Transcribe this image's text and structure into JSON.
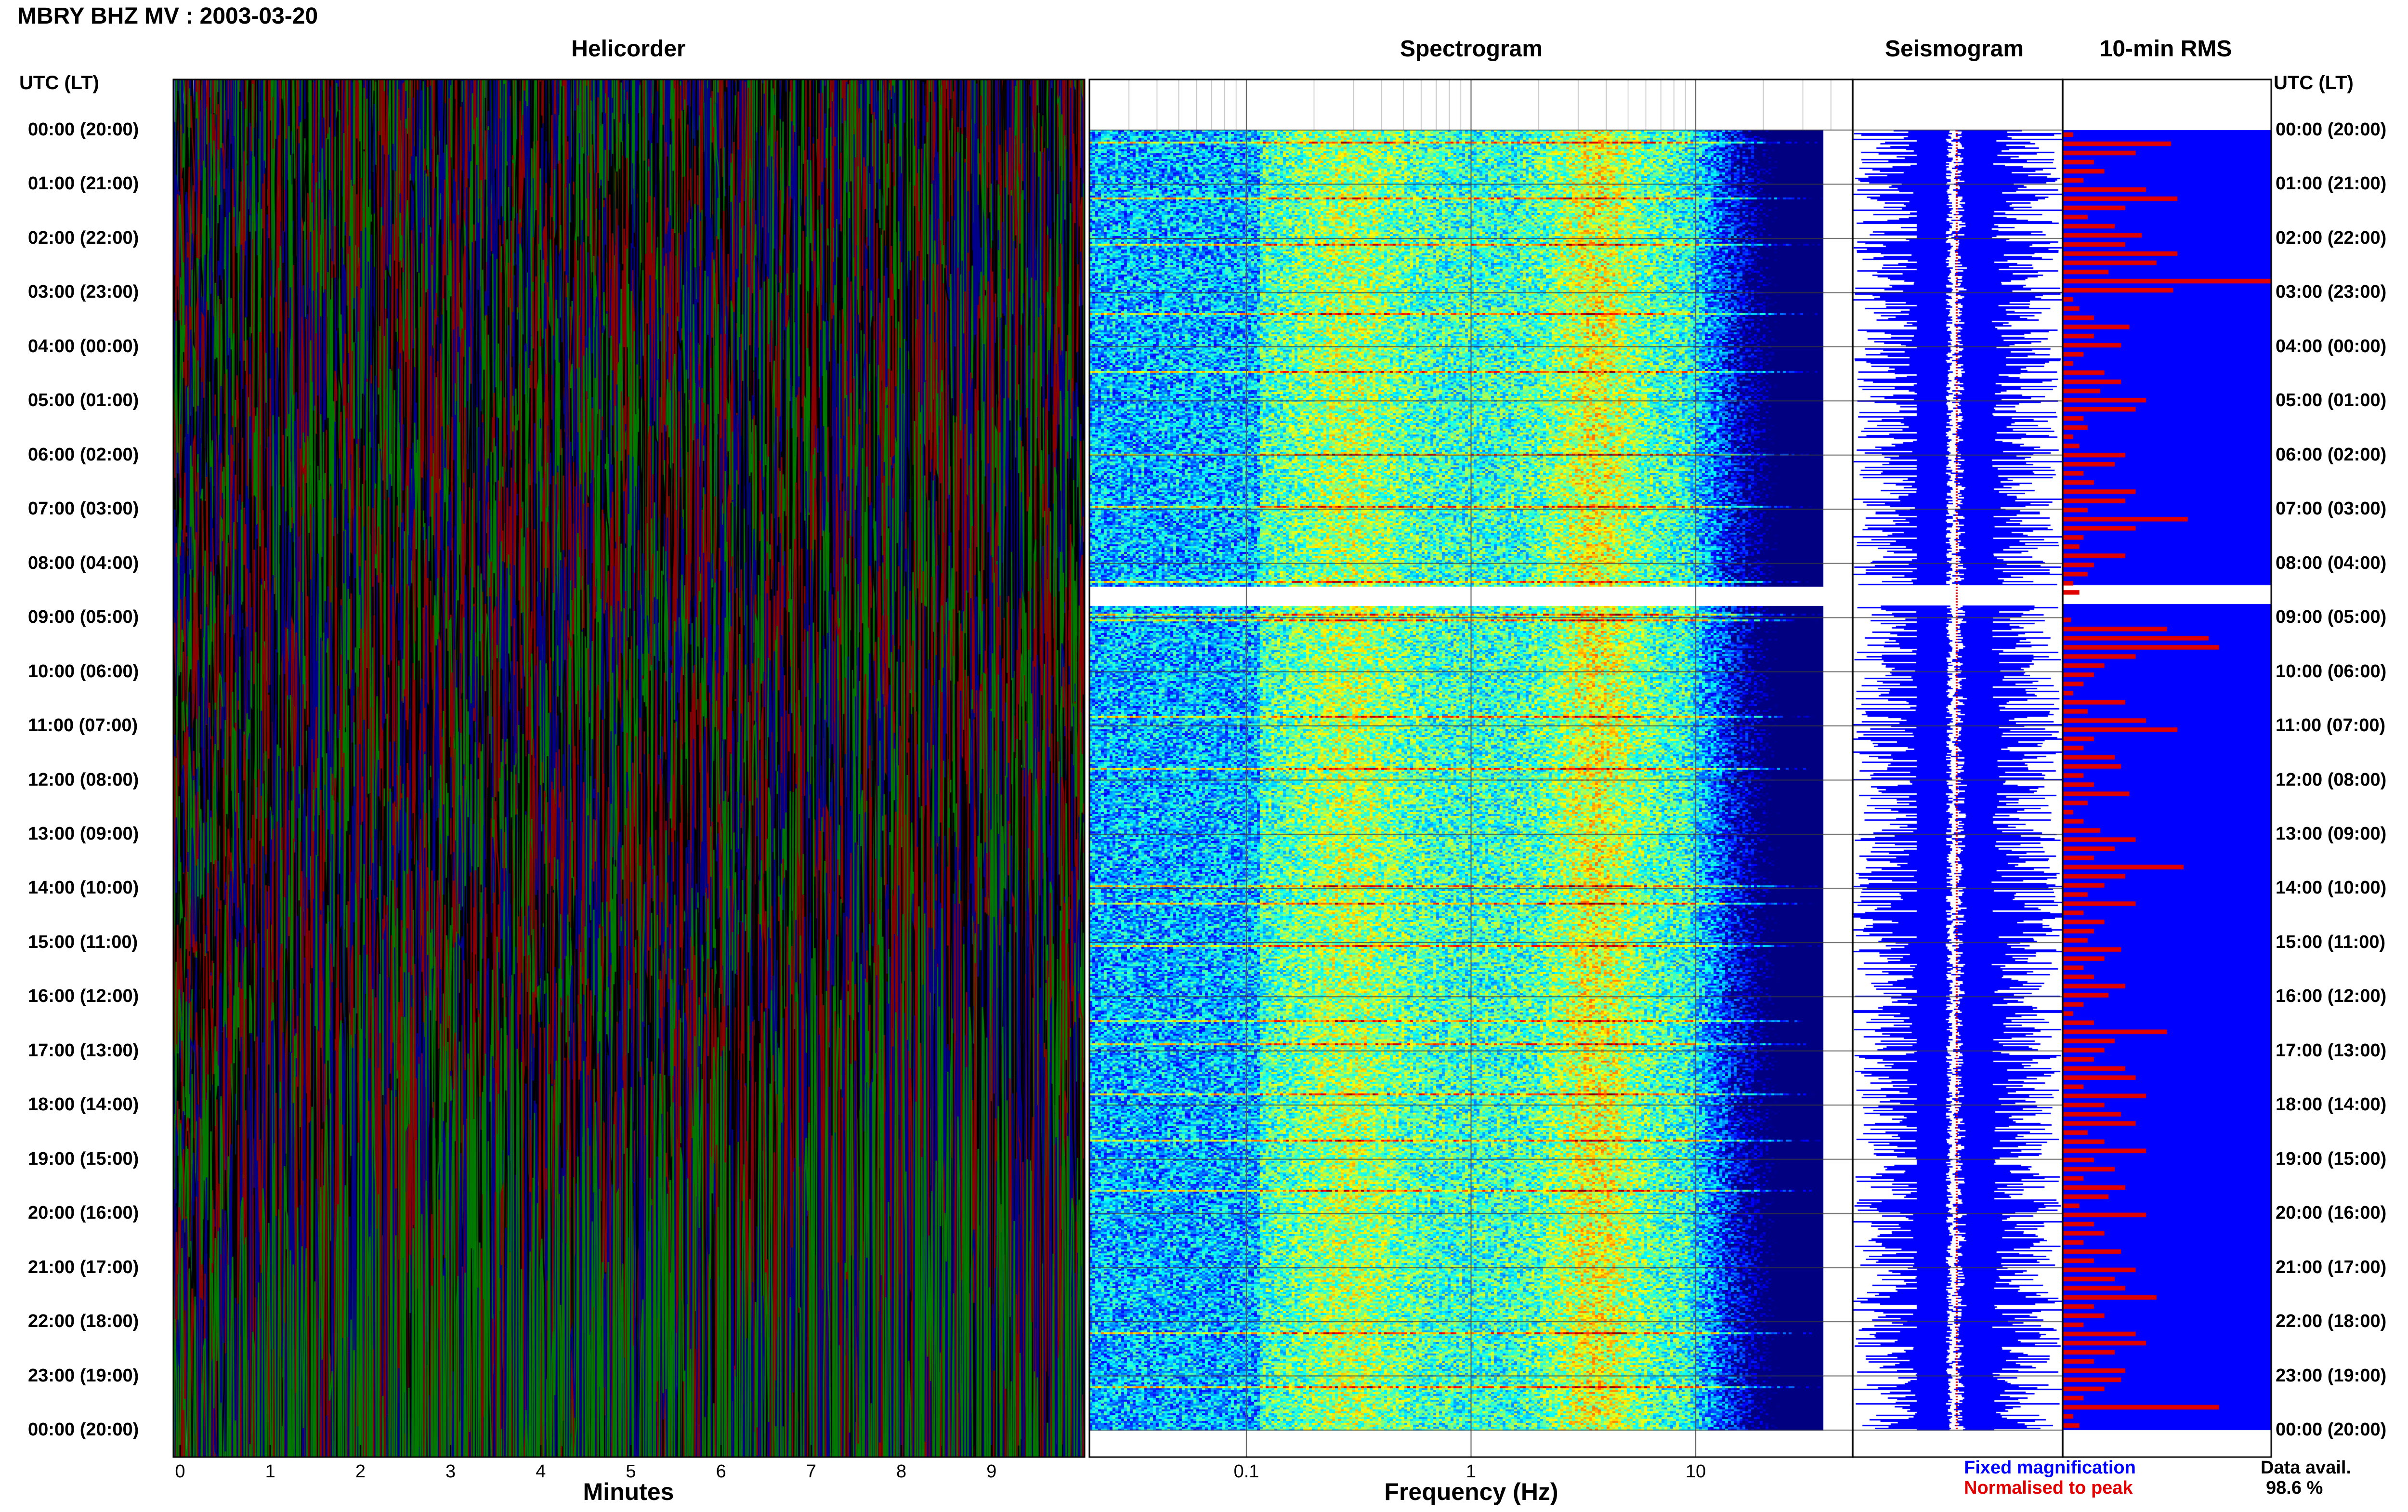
{
  "page": {
    "title": "MBRY BHZ MV : 2003-03-20",
    "panels": {
      "helicorder": "Helicorder",
      "spectrogram": "Spectrogram",
      "seismogram": "Seismogram",
      "rms": "10-min RMS"
    },
    "utc_label_left": "UTC (LT)",
    "utc_label_right": "UTC (LT)",
    "xlabel_helicorder": "Minutes",
    "xlabel_spectrogram": "Frequency (Hz)",
    "legend_fixed": "Fixed magnification",
    "legend_normalised": "Normalised to peak",
    "data_avail_label": "Data avail.",
    "data_avail_value": "98.6 %",
    "colors": {
      "helicorder_traces": [
        "#000000",
        "#8b0000",
        "#00008b",
        "#007a00"
      ],
      "fixed_magnification": "#0000ff",
      "normalised_to_peak": "#e00000",
      "rms_background": "#0000ff",
      "rms_bar": "#e00000"
    }
  },
  "chart_data": [
    {
      "type": "line",
      "name": "Helicorder",
      "xlabel": "Minutes",
      "xlim": [
        0,
        10
      ],
      "xticks": [
        0,
        1,
        2,
        3,
        4,
        5,
        6,
        7,
        8,
        9
      ],
      "row_labels": [
        "00:00 (20:00)",
        "01:00 (21:00)",
        "02:00 (22:00)",
        "03:00 (23:00)",
        "04:00 (00:00)",
        "05:00 (01:00)",
        "06:00 (02:00)",
        "07:00 (03:00)",
        "08:00 (04:00)",
        "09:00 (05:00)",
        "10:00 (06:00)",
        "11:00 (07:00)",
        "12:00 (08:00)",
        "13:00 (09:00)",
        "14:00 (10:00)",
        "15:00 (11:00)",
        "16:00 (12:00)",
        "17:00 (13:00)",
        "18:00 (14:00)",
        "19:00 (15:00)",
        "20:00 (16:00)",
        "21:00 (17:00)",
        "22:00 (18:00)",
        "23:00 (19:00)",
        "00:00 (20:00)"
      ]
    },
    {
      "type": "heatmap",
      "name": "Spectrogram",
      "xlabel": "Frequency (Hz)",
      "xscale": "log",
      "xticks": [
        "0.1",
        "1",
        "10"
      ],
      "xlim": [
        0.02,
        50
      ],
      "data_gap_hours": [
        8.4,
        8.75
      ]
    },
    {
      "type": "line",
      "name": "Seismogram",
      "data_gap_hours": [
        8.4,
        8.75
      ]
    },
    {
      "type": "bar",
      "name": "10-min RMS",
      "orientation": "horizontal",
      "data_gap_hours": [
        8.4,
        8.75
      ],
      "values": [
        0.05,
        0.52,
        0.35,
        0.15,
        0.2,
        0.1,
        0.4,
        0.55,
        0.3,
        0.12,
        0.25,
        0.38,
        0.3,
        0.55,
        0.45,
        0.22,
        1.0,
        0.53,
        0.05,
        0.08,
        0.15,
        0.32,
        0.15,
        0.28,
        0.1,
        0.05,
        0.2,
        0.28,
        0.18,
        0.4,
        0.35,
        0.1,
        0.12,
        0.05,
        0.08,
        0.3,
        0.25,
        0.1,
        0.15,
        0.35,
        0.3,
        0.12,
        0.6,
        0.35,
        0.1,
        0.08,
        0.3,
        0.15,
        0.12,
        0.05,
        0.08,
        0.2,
        0.06,
        0.04,
        0.5,
        0.7,
        0.75,
        0.35,
        0.2,
        0.15,
        0.1,
        0.05,
        0.3,
        0.12,
        0.4,
        0.55,
        0.15,
        0.1,
        0.25,
        0.28,
        0.1,
        0.15,
        0.32,
        0.12,
        0.05,
        0.1,
        0.18,
        0.35,
        0.25,
        0.15,
        0.58,
        0.3,
        0.2,
        0.12,
        0.35,
        0.1,
        0.2,
        0.15,
        0.12,
        0.28,
        0.2,
        0.1,
        0.15,
        0.3,
        0.22,
        0.1,
        0.05,
        0.15,
        0.5,
        0.25,
        0.2,
        0.15,
        0.3,
        0.35,
        0.1,
        0.4,
        0.2,
        0.28,
        0.35,
        0.12,
        0.2,
        0.4,
        0.15,
        0.25,
        0.1,
        0.3,
        0.22,
        0.08,
        0.4,
        0.15,
        0.2,
        0.1,
        0.28,
        0.15,
        0.35,
        0.25,
        0.3,
        0.45,
        0.15,
        0.2,
        0.1,
        0.35,
        0.4,
        0.25,
        0.15,
        0.3,
        0.28,
        0.2,
        0.1,
        0.75,
        0.05,
        0.08
      ]
    }
  ]
}
